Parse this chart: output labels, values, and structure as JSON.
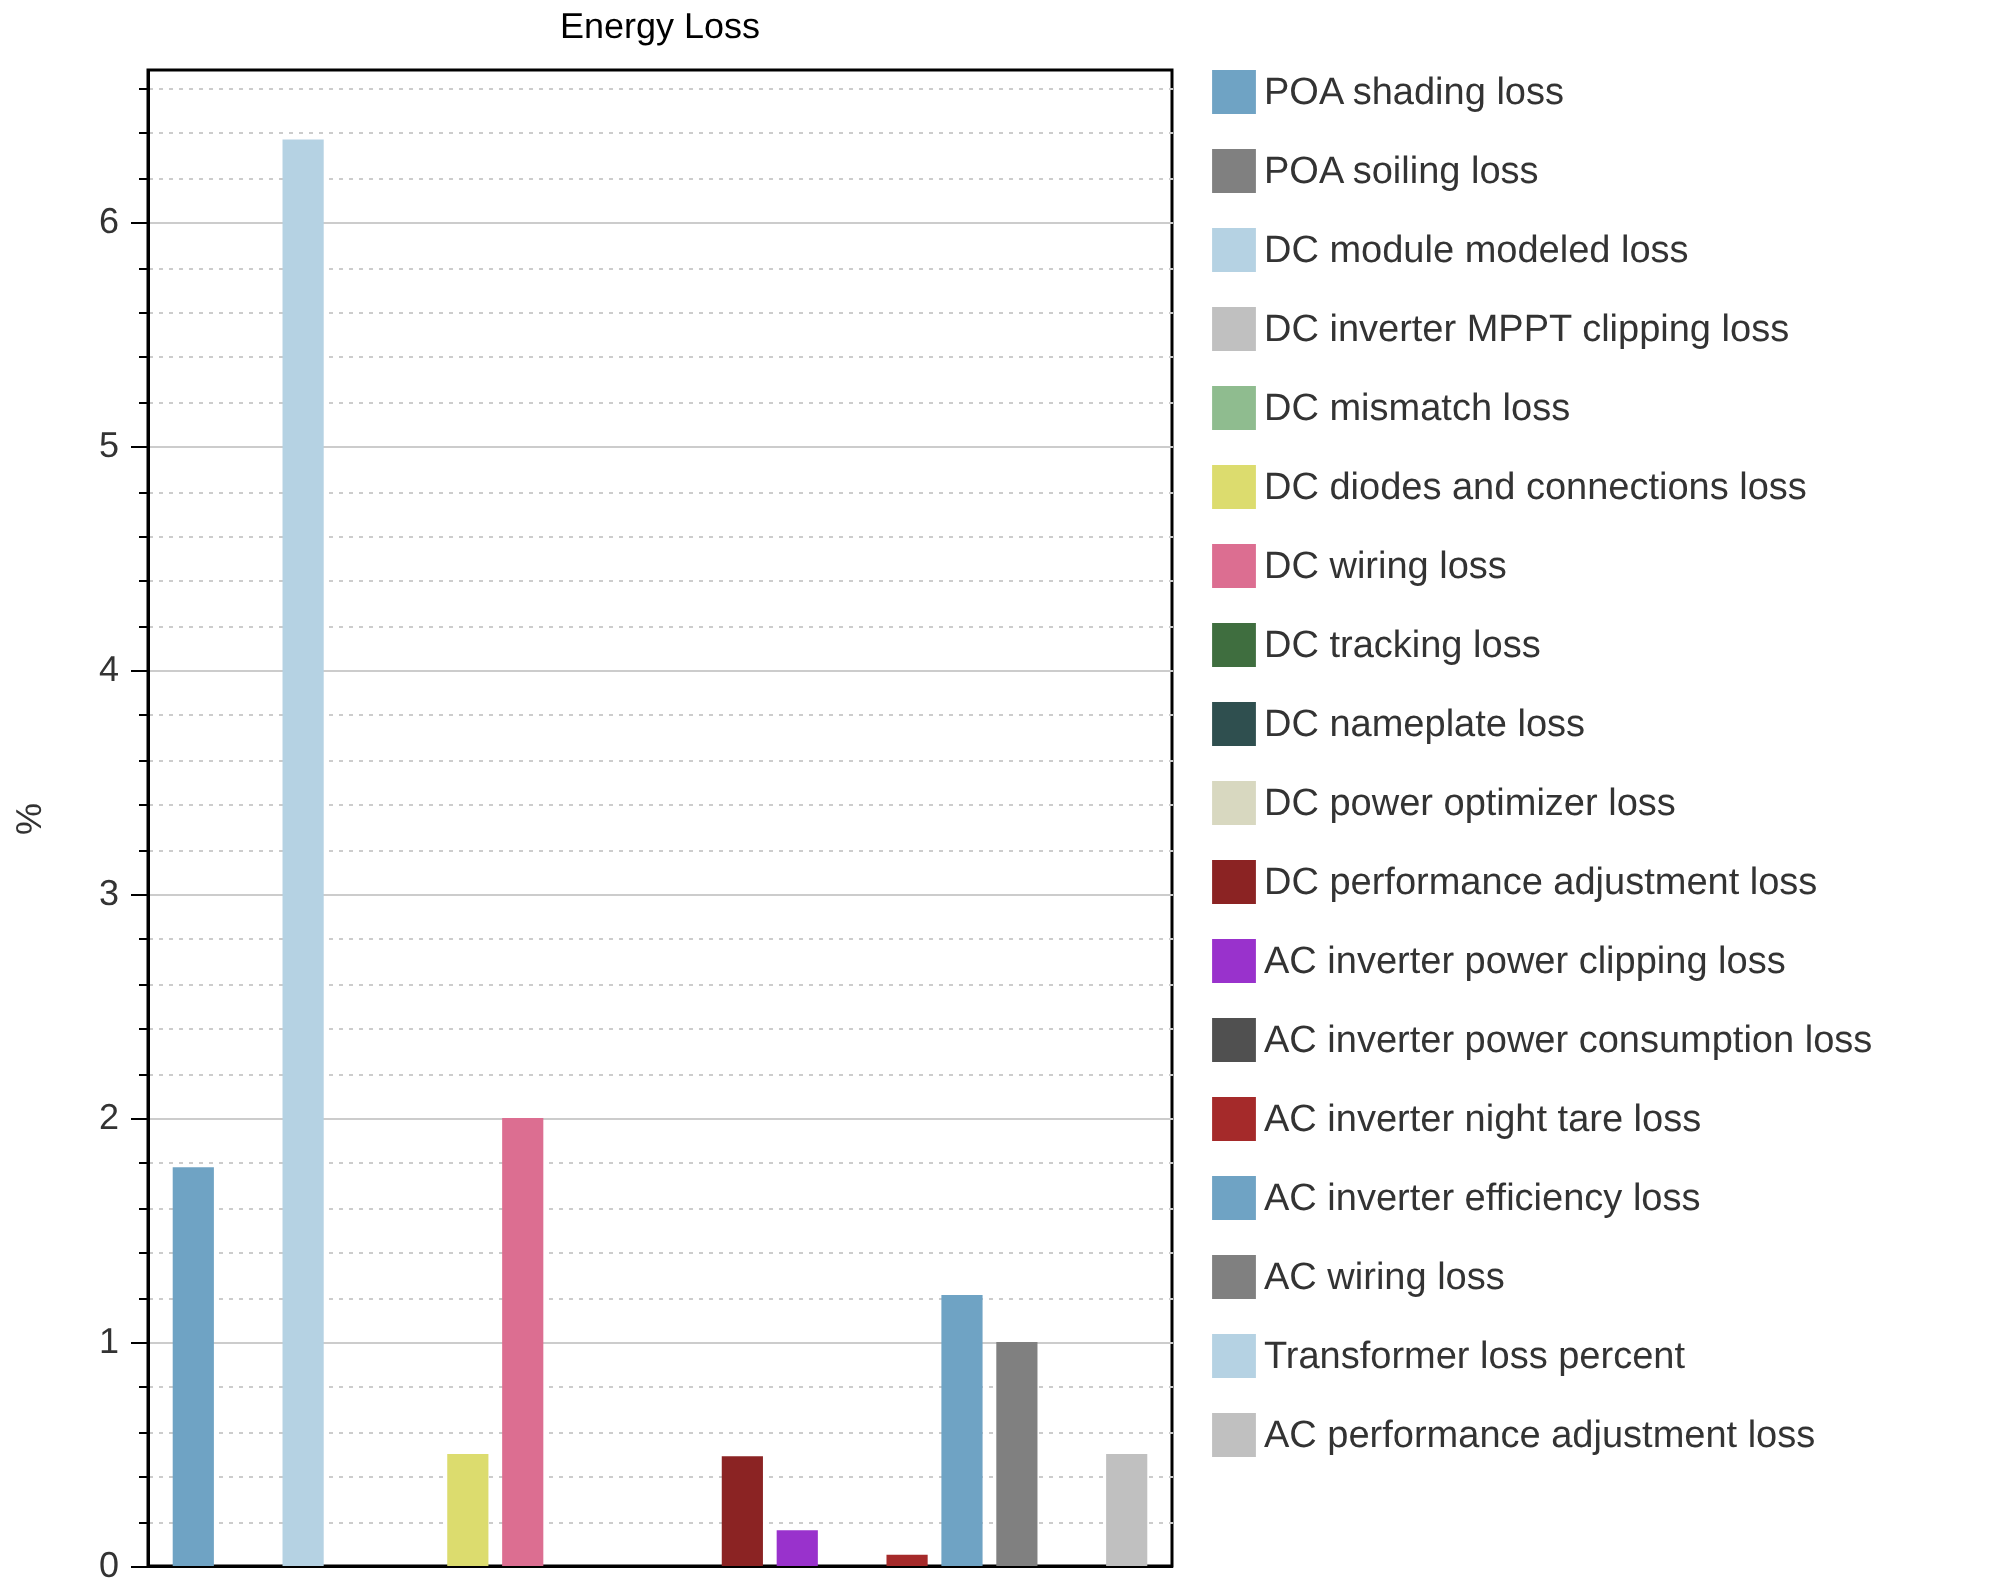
{
  "chart_data": {
    "type": "bar",
    "title": "Energy Loss",
    "ylabel": "%",
    "categories": [
      null,
      null,
      null,
      null,
      null,
      null,
      null,
      null,
      null,
      null,
      null,
      null,
      null,
      null,
      null,
      null,
      null,
      null
    ],
    "series": [
      {
        "name": "POA shading loss",
        "color": "#6fa3c4",
        "values": [
          1.78,
          null,
          null,
          null,
          null,
          null,
          null,
          null,
          null,
          null,
          null,
          null,
          null,
          null,
          null,
          null,
          null,
          null
        ]
      },
      {
        "name": "POA soiling loss",
        "color": "#808080",
        "values": [
          null,
          0,
          null,
          null,
          null,
          null,
          null,
          null,
          null,
          null,
          null,
          null,
          null,
          null,
          null,
          null,
          null,
          null
        ]
      },
      {
        "name": "DC module modeled loss",
        "color": "#b5d2e3",
        "values": [
          null,
          null,
          6.37,
          null,
          null,
          null,
          null,
          null,
          null,
          null,
          null,
          null,
          null,
          null,
          null,
          null,
          null,
          null
        ]
      },
      {
        "name": "DC inverter MPPT clipping loss",
        "color": "#c0c0c0",
        "values": [
          null,
          null,
          null,
          0,
          null,
          null,
          null,
          null,
          null,
          null,
          null,
          null,
          null,
          null,
          null,
          null,
          null,
          null
        ]
      },
      {
        "name": "DC mismatch loss",
        "color": "#8fbc8f",
        "values": [
          null,
          null,
          null,
          null,
          0,
          null,
          null,
          null,
          null,
          null,
          null,
          null,
          null,
          null,
          null,
          null,
          null,
          null
        ]
      },
      {
        "name": "DC diodes and connections loss",
        "color": "#dcdc6e",
        "values": [
          null,
          null,
          null,
          null,
          null,
          0.5,
          null,
          null,
          null,
          null,
          null,
          null,
          null,
          null,
          null,
          null,
          null,
          null
        ]
      },
      {
        "name": "DC wiring loss",
        "color": "#dc6e91",
        "values": [
          null,
          null,
          null,
          null,
          null,
          null,
          2.0,
          null,
          null,
          null,
          null,
          null,
          null,
          null,
          null,
          null,
          null,
          null
        ]
      },
      {
        "name": "DC tracking loss",
        "color": "#3f6e3f",
        "values": [
          null,
          null,
          null,
          null,
          null,
          null,
          null,
          0,
          null,
          null,
          null,
          null,
          null,
          null,
          null,
          null,
          null,
          null
        ]
      },
      {
        "name": "DC nameplate loss",
        "color": "#2f4f4f",
        "values": [
          null,
          null,
          null,
          null,
          null,
          null,
          null,
          null,
          0,
          null,
          null,
          null,
          null,
          null,
          null,
          null,
          null,
          null
        ]
      },
      {
        "name": "DC power optimizer loss",
        "color": "#d8d8c0",
        "values": [
          null,
          null,
          null,
          null,
          null,
          null,
          null,
          null,
          null,
          0,
          null,
          null,
          null,
          null,
          null,
          null,
          null,
          null
        ]
      },
      {
        "name": "DC performance adjustment loss",
        "color": "#8b2323",
        "values": [
          null,
          null,
          null,
          null,
          null,
          null,
          null,
          null,
          null,
          null,
          0.49,
          null,
          null,
          null,
          null,
          null,
          null,
          null
        ]
      },
      {
        "name": "AC inverter power clipping loss",
        "color": "#9932cc",
        "values": [
          null,
          null,
          null,
          null,
          null,
          null,
          null,
          null,
          null,
          null,
          null,
          0.16,
          null,
          null,
          null,
          null,
          null,
          null
        ]
      },
      {
        "name": "AC inverter power consumption loss",
        "color": "#505050",
        "values": [
          null,
          null,
          null,
          null,
          null,
          null,
          null,
          null,
          null,
          null,
          null,
          null,
          0,
          null,
          null,
          null,
          null,
          null
        ]
      },
      {
        "name": "AC inverter night tare loss",
        "color": "#a52a2a",
        "values": [
          null,
          null,
          null,
          null,
          null,
          null,
          null,
          null,
          null,
          null,
          null,
          null,
          null,
          0.05,
          null,
          null,
          null,
          null
        ]
      },
      {
        "name": "AC inverter efficiency loss",
        "color": "#6fa3c4",
        "values": [
          null,
          null,
          null,
          null,
          null,
          null,
          null,
          null,
          null,
          null,
          null,
          null,
          null,
          null,
          1.21,
          null,
          null,
          null
        ]
      },
      {
        "name": "AC wiring loss",
        "color": "#808080",
        "values": [
          null,
          null,
          null,
          null,
          null,
          null,
          null,
          null,
          null,
          null,
          null,
          null,
          null,
          null,
          null,
          1.0,
          null,
          null
        ]
      },
      {
        "name": "Transformer loss percent",
        "color": "#b5d2e3",
        "values": [
          null,
          null,
          null,
          null,
          null,
          null,
          null,
          null,
          null,
          null,
          null,
          null,
          null,
          null,
          null,
          null,
          0,
          null
        ]
      },
      {
        "name": "AC performance adjustment loss",
        "color": "#c0c0c0",
        "values": [
          null,
          null,
          null,
          null,
          null,
          null,
          null,
          null,
          null,
          null,
          null,
          null,
          null,
          null,
          null,
          null,
          null,
          0.5
        ]
      }
    ],
    "ylim": [
      0,
      6.68
    ],
    "yticks": [
      0,
      {
        "value": 0.2,
        "label": null
      },
      {
        "value": 0.4,
        "label": null
      },
      {
        "value": 0.6,
        "label": null
      },
      {
        "value": 0.8,
        "label": null
      },
      1,
      {
        "value": 1.2,
        "label": null
      },
      {
        "value": 1.4,
        "label": null
      },
      {
        "value": 1.6,
        "label": null
      },
      {
        "value": 1.8,
        "label": null
      },
      2,
      {
        "value": 2.2,
        "label": null
      },
      {
        "value": 2.4,
        "label": null
      },
      {
        "value": 2.6,
        "label": null
      },
      {
        "value": 2.8,
        "label": null
      },
      3,
      {
        "value": 3.2,
        "label": null
      },
      {
        "value": 3.4,
        "label": null
      },
      {
        "value": 3.6,
        "label": null
      },
      {
        "value": 3.8,
        "label": null
      },
      4,
      {
        "value": 4.2,
        "label": null
      },
      {
        "value": 4.4,
        "label": null
      },
      {
        "value": 4.6,
        "label": null
      },
      {
        "value": 4.8,
        "label": null
      },
      5,
      {
        "value": 5.2,
        "label": null
      },
      {
        "value": 5.4,
        "label": null
      },
      {
        "value": 5.6,
        "label": null
      },
      {
        "value": 5.8,
        "label": null
      },
      6,
      {
        "value": 6.2,
        "label": null
      },
      {
        "value": 6.4,
        "label": null
      },
      {
        "value": 6.6,
        "label": null
      }
    ],
    "grid": "y",
    "legend": "right"
  }
}
